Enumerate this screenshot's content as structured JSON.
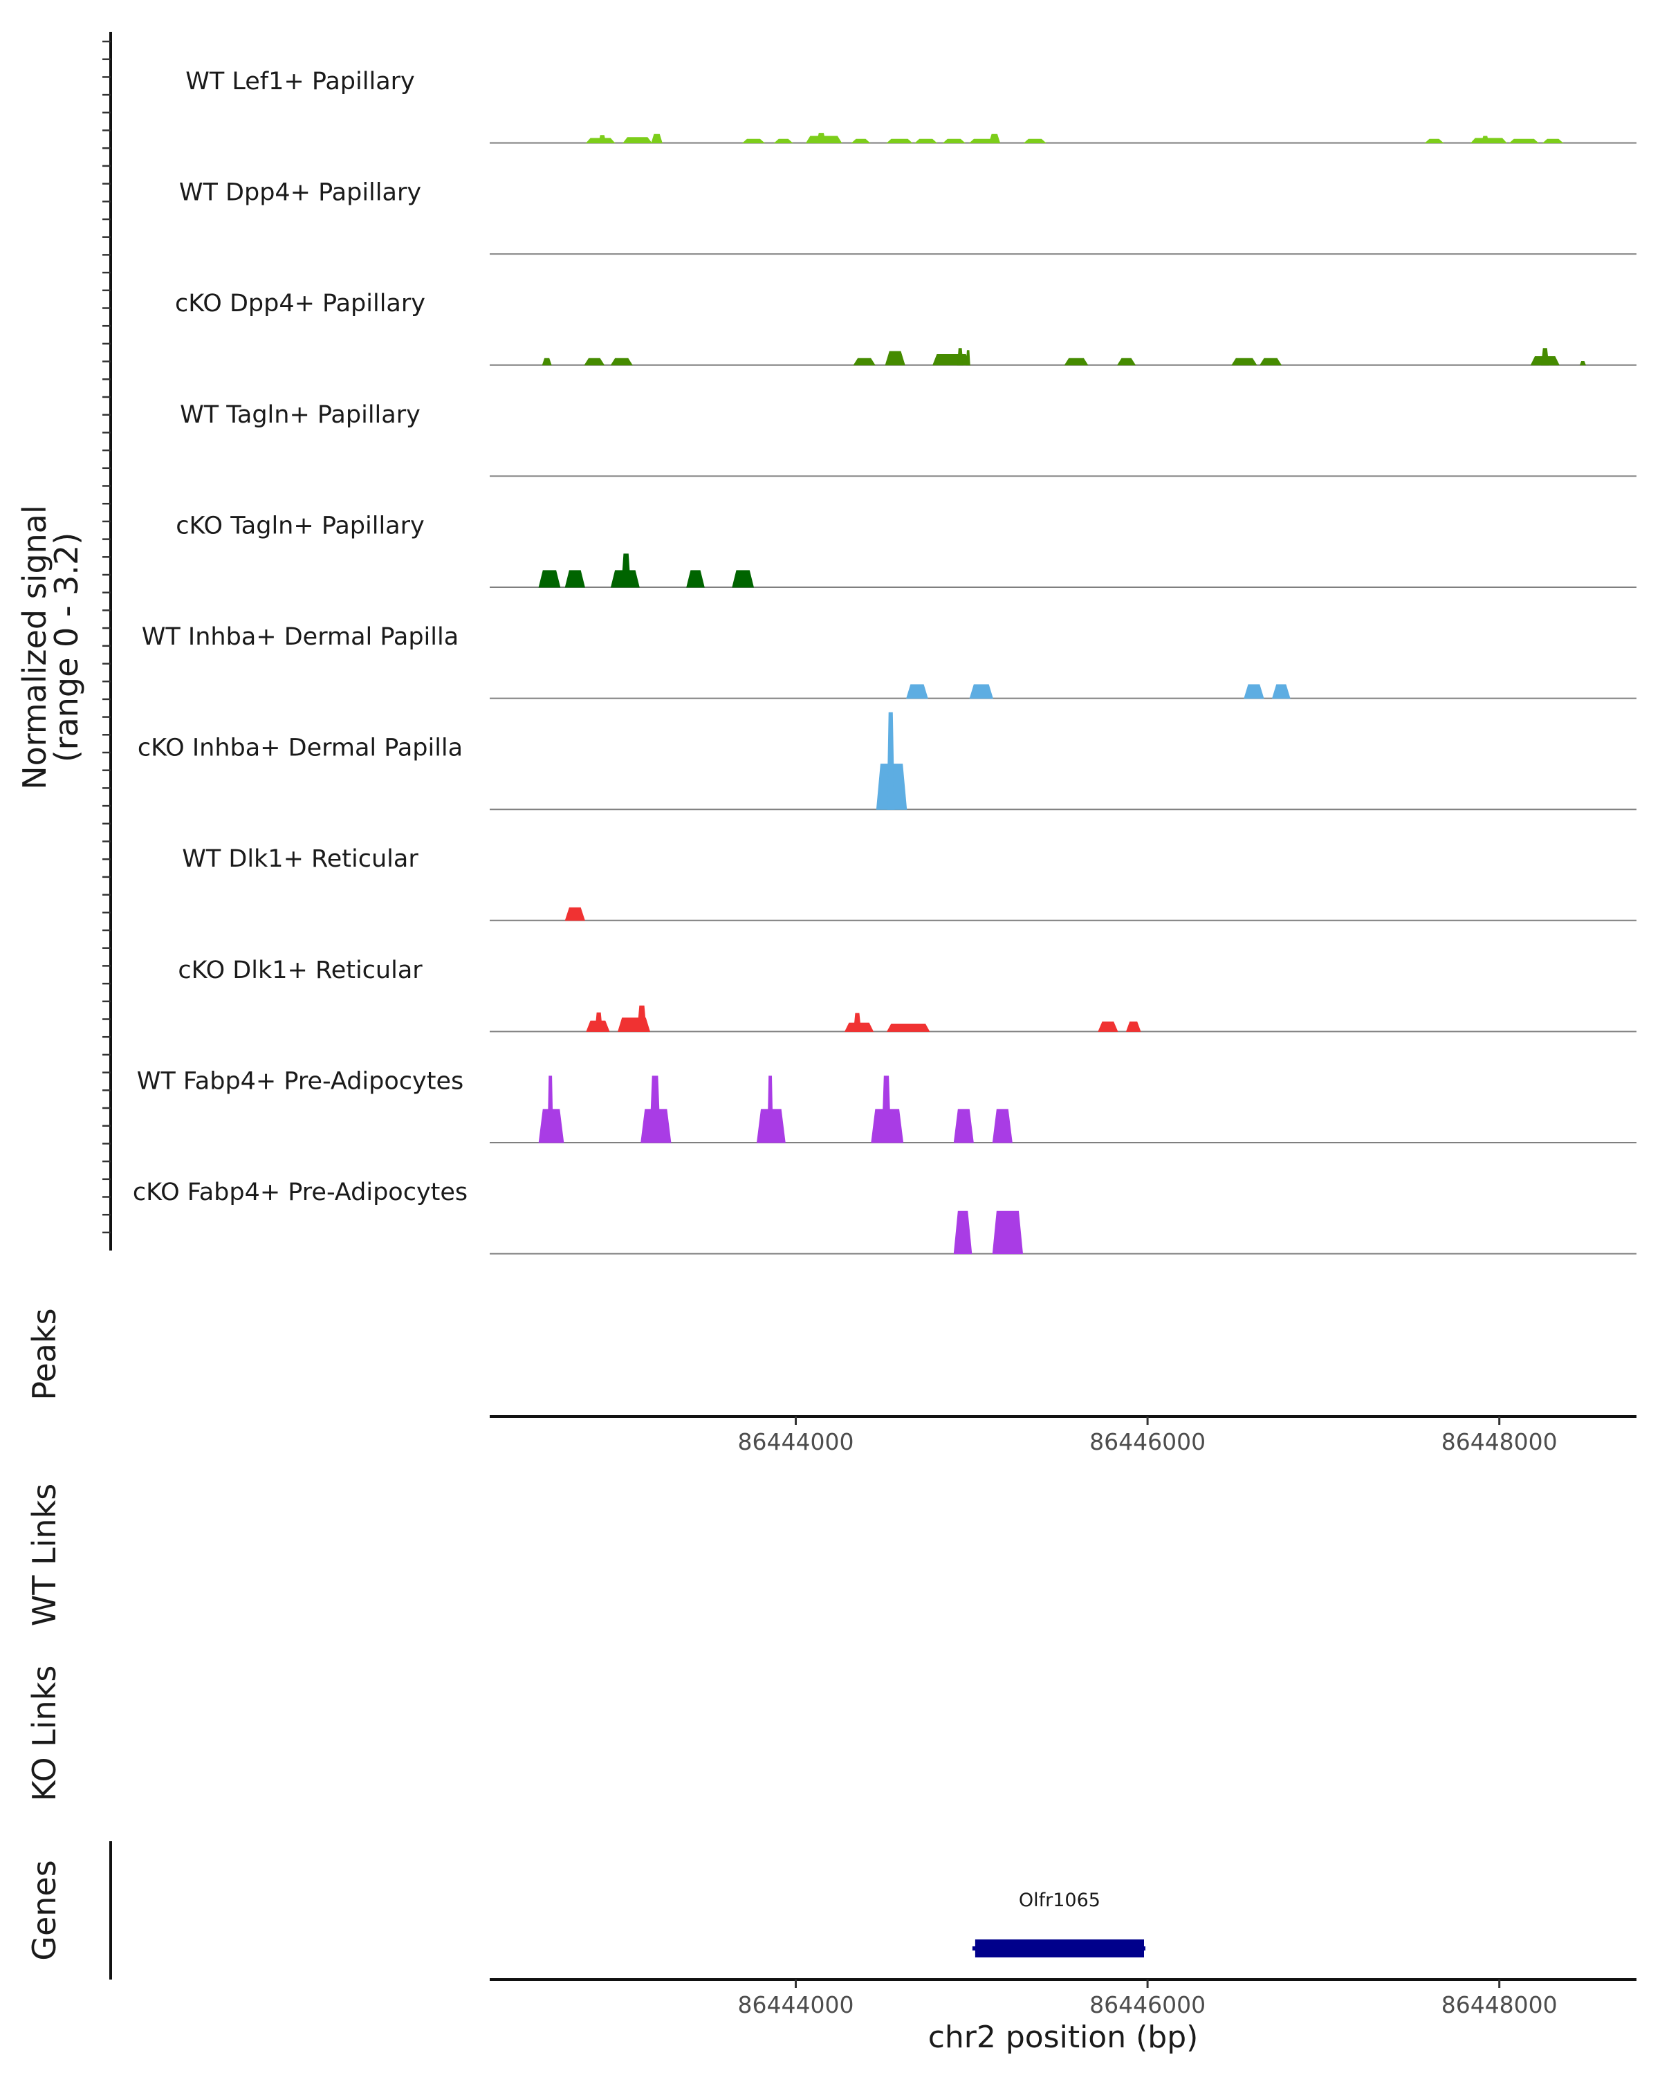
{
  "chart_data": {
    "type": "area",
    "title": "",
    "y_axis_title": [
      "Normalized signal",
      "(range 0 - 3.2)"
    ],
    "ylim": [
      0,
      3.2
    ],
    "chromosome": "chr2",
    "xlim": [
      86442260,
      86448780
    ],
    "x_ticks": [
      86444000,
      86446000,
      86448000
    ],
    "x_tick_labels": [
      "86444000",
      "86446000",
      "86448000"
    ],
    "xlabel": "chr2 position (bp)",
    "tracks": [
      {
        "name": "WT Lef1+ Papillary",
        "color": "#7CCD1A",
        "peaks": [
          [
            86442810,
            86442970,
            0.15
          ],
          [
            86442880,
            86442920,
            0.25
          ],
          [
            86443020,
            86443180,
            0.18
          ],
          [
            86443180,
            86443240,
            0.28
          ],
          [
            86443700,
            86443820,
            0.12
          ],
          [
            86443880,
            86443980,
            0.12
          ],
          [
            86444060,
            86444260,
            0.22
          ],
          [
            86444120,
            86444170,
            0.32
          ],
          [
            86444320,
            86444420,
            0.12
          ],
          [
            86444520,
            86444660,
            0.12
          ],
          [
            86444680,
            86444800,
            0.12
          ],
          [
            86444840,
            86444960,
            0.12
          ],
          [
            86444990,
            86445150,
            0.12
          ],
          [
            86445100,
            86445160,
            0.28
          ],
          [
            86445300,
            86445420,
            0.12
          ],
          [
            86447580,
            86447680,
            0.12
          ],
          [
            86447840,
            86448040,
            0.15
          ],
          [
            86447900,
            86447940,
            0.22
          ],
          [
            86448060,
            86448220,
            0.12
          ],
          [
            86448250,
            86448360,
            0.12
          ]
        ]
      },
      {
        "name": "WT Dpp4+ Papillary",
        "color": "#4E8A1A",
        "peaks": []
      },
      {
        "name": "cKO Dpp4+ Papillary",
        "color": "#458B00",
        "peaks": [
          [
            86442560,
            86442610,
            0.22
          ],
          [
            86442800,
            86442910,
            0.22
          ],
          [
            86442950,
            86443070,
            0.22
          ],
          [
            86444330,
            86444450,
            0.22
          ],
          [
            86444510,
            86444620,
            0.45
          ],
          [
            86444780,
            86444990,
            0.35
          ],
          [
            86444920,
            86444950,
            0.55
          ],
          [
            86444970,
            86444990,
            0.48
          ],
          [
            86445530,
            86445660,
            0.22
          ],
          [
            86445830,
            86445930,
            0.22
          ],
          [
            86446480,
            86446620,
            0.22
          ],
          [
            86446640,
            86446760,
            0.22
          ],
          [
            86448180,
            86448340,
            0.28
          ],
          [
            86448240,
            86448280,
            0.55
          ],
          [
            86448460,
            86448490,
            0.12
          ]
        ]
      },
      {
        "name": "WT Tagln+ Papillary",
        "color": "#006400",
        "peaks": []
      },
      {
        "name": "cKO Tagln+ Papillary",
        "color": "#006400",
        "peaks": [
          [
            86442540,
            86442660,
            0.55
          ],
          [
            86442690,
            86442800,
            0.55
          ],
          [
            86442950,
            86443110,
            0.55
          ],
          [
            86443010,
            86443060,
            1.1
          ],
          [
            86443380,
            86443480,
            0.55
          ],
          [
            86443640,
            86443760,
            0.55
          ]
        ]
      },
      {
        "name": "WT Inhba+ Dermal Papilla",
        "color": "#5DADE2",
        "peaks": [
          [
            86444630,
            86444750,
            0.45
          ],
          [
            86444990,
            86445120,
            0.45
          ],
          [
            86446550,
            86446660,
            0.45
          ],
          [
            86446710,
            86446810,
            0.45
          ]
        ]
      },
      {
        "name": "cKO Inhba+ Dermal Papilla",
        "color": "#5DADE2",
        "peaks": [
          [
            86444460,
            86444630,
            1.5
          ],
          [
            86444520,
            86444560,
            3.2
          ]
        ]
      },
      {
        "name": "WT Dlk1+ Reticular",
        "color": "#F03232",
        "peaks": [
          [
            86442690,
            86442800,
            0.42
          ]
        ]
      },
      {
        "name": "cKO Dlk1+ Reticular",
        "color": "#F03232",
        "peaks": [
          [
            86442810,
            86442940,
            0.35
          ],
          [
            86442860,
            86442900,
            0.62
          ],
          [
            86442990,
            86443170,
            0.45
          ],
          [
            86443100,
            86443150,
            0.85
          ],
          [
            86444520,
            86444760,
            0.25
          ],
          [
            86444280,
            86444440,
            0.28
          ],
          [
            86444330,
            86444370,
            0.6
          ],
          [
            86445720,
            86445830,
            0.32
          ],
          [
            86445880,
            86445960,
            0.32
          ]
        ]
      },
      {
        "name": "WT Fabp4+ Pre-Adipocytes",
        "color": "#A93CE5",
        "peaks": [
          [
            86442540,
            86442680,
            1.1
          ],
          [
            86442590,
            86442620,
            2.2
          ],
          [
            86443120,
            86443290,
            1.1
          ],
          [
            86443170,
            86443230,
            2.2
          ],
          [
            86443780,
            86443940,
            1.1
          ],
          [
            86443840,
            86443870,
            2.2
          ],
          [
            86444430,
            86444610,
            1.1
          ],
          [
            86444490,
            86444540,
            2.2
          ],
          [
            86444900,
            86445010,
            1.1
          ],
          [
            86445120,
            86445230,
            1.1
          ]
        ]
      },
      {
        "name": "cKO Fabp4+ Pre-Adipocytes",
        "color": "#A93CE5",
        "peaks": [
          [
            86444900,
            86445000,
            1.4
          ],
          [
            86445120,
            86445290,
            1.4
          ]
        ]
      }
    ],
    "other_tracks": [
      "Peaks",
      "WT Links",
      "KO Links",
      "Genes"
    ],
    "genes": [
      {
        "name": "Olfr1065",
        "start": 86445020,
        "end": 86445980,
        "color": "#00008B"
      }
    ]
  }
}
